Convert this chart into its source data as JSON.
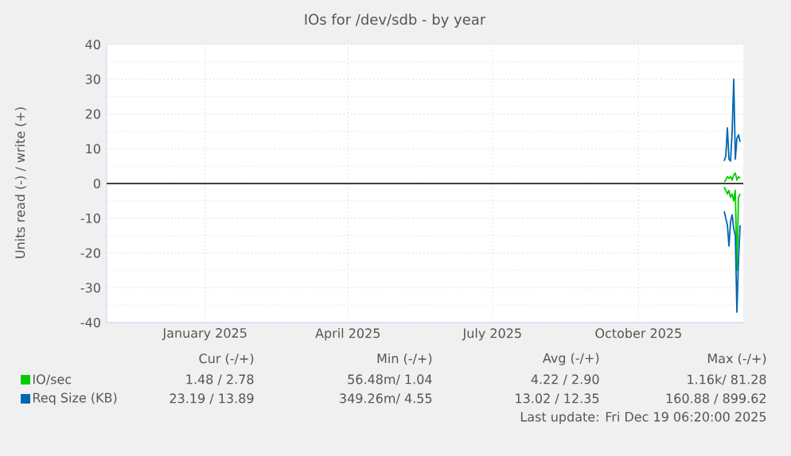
{
  "chart_data": {
    "type": "line",
    "title": "IOs for /dev/sdb - by year",
    "ylabel": "Units read (-) / write (+)",
    "x": [
      "2025-11-24",
      "2025-11-25",
      "2025-11-26",
      "2025-11-27",
      "2025-11-28",
      "2025-11-29",
      "2025-11-30",
      "2025-12-01",
      "2025-12-02",
      "2025-12-03",
      "2025-12-04"
    ],
    "series": [
      {
        "name": "IO/sec",
        "color": "#00cc00",
        "values": [
          0.5,
          1,
          2,
          1.5,
          2,
          1,
          2.5,
          3,
          1,
          2,
          1.5
        ]
      },
      {
        "color": "#00cc00",
        "values": [
          -1,
          -2,
          -3,
          -2,
          -4,
          -3,
          -5,
          -2,
          -25,
          -4,
          -3
        ]
      },
      {
        "name": "Req Size (KB)",
        "color": "#0066b3",
        "values": [
          6.5,
          8,
          16,
          7,
          6.5,
          15,
          30,
          7,
          13,
          14,
          12
        ]
      },
      {
        "color": "#0066b3",
        "values": [
          -8,
          -10,
          -12,
          -18,
          -11,
          -9,
          -13,
          -15,
          -37,
          -22,
          -12
        ]
      }
    ],
    "xlim": [
      "2024-10-31",
      "2025-12-06"
    ],
    "xticks": [
      {
        "value": "2025-01-01",
        "label": "January 2025"
      },
      {
        "value": "2025-04-01",
        "label": "April 2025"
      },
      {
        "value": "2025-07-01",
        "label": "July 2025"
      },
      {
        "value": "2025-10-01",
        "label": "October 2025"
      }
    ],
    "ylim": [
      -40,
      40
    ],
    "yticks": [
      -40,
      -30,
      -20,
      -10,
      0,
      10,
      20,
      30,
      40
    ],
    "grid": true,
    "legend": "bottom",
    "ref_lines": [
      {
        "axis": "y",
        "value": 0,
        "color": "#000000"
      }
    ],
    "annotations": [
      "Cur (-/+)",
      "Min (-/+)",
      "Avg (-/+)",
      "Max (-/+)",
      "1.48 /     2.78",
      "56.48m/     1.04",
      "4.22 /     2.90",
      "1.16k/    81.28",
      "23.19 /   13.89",
      "349.26m/     4.55",
      "13.02 /   12.35",
      "160.88 /  899.62",
      "Last update: Fri Dec 19 06:20:00 2025"
    ]
  }
}
